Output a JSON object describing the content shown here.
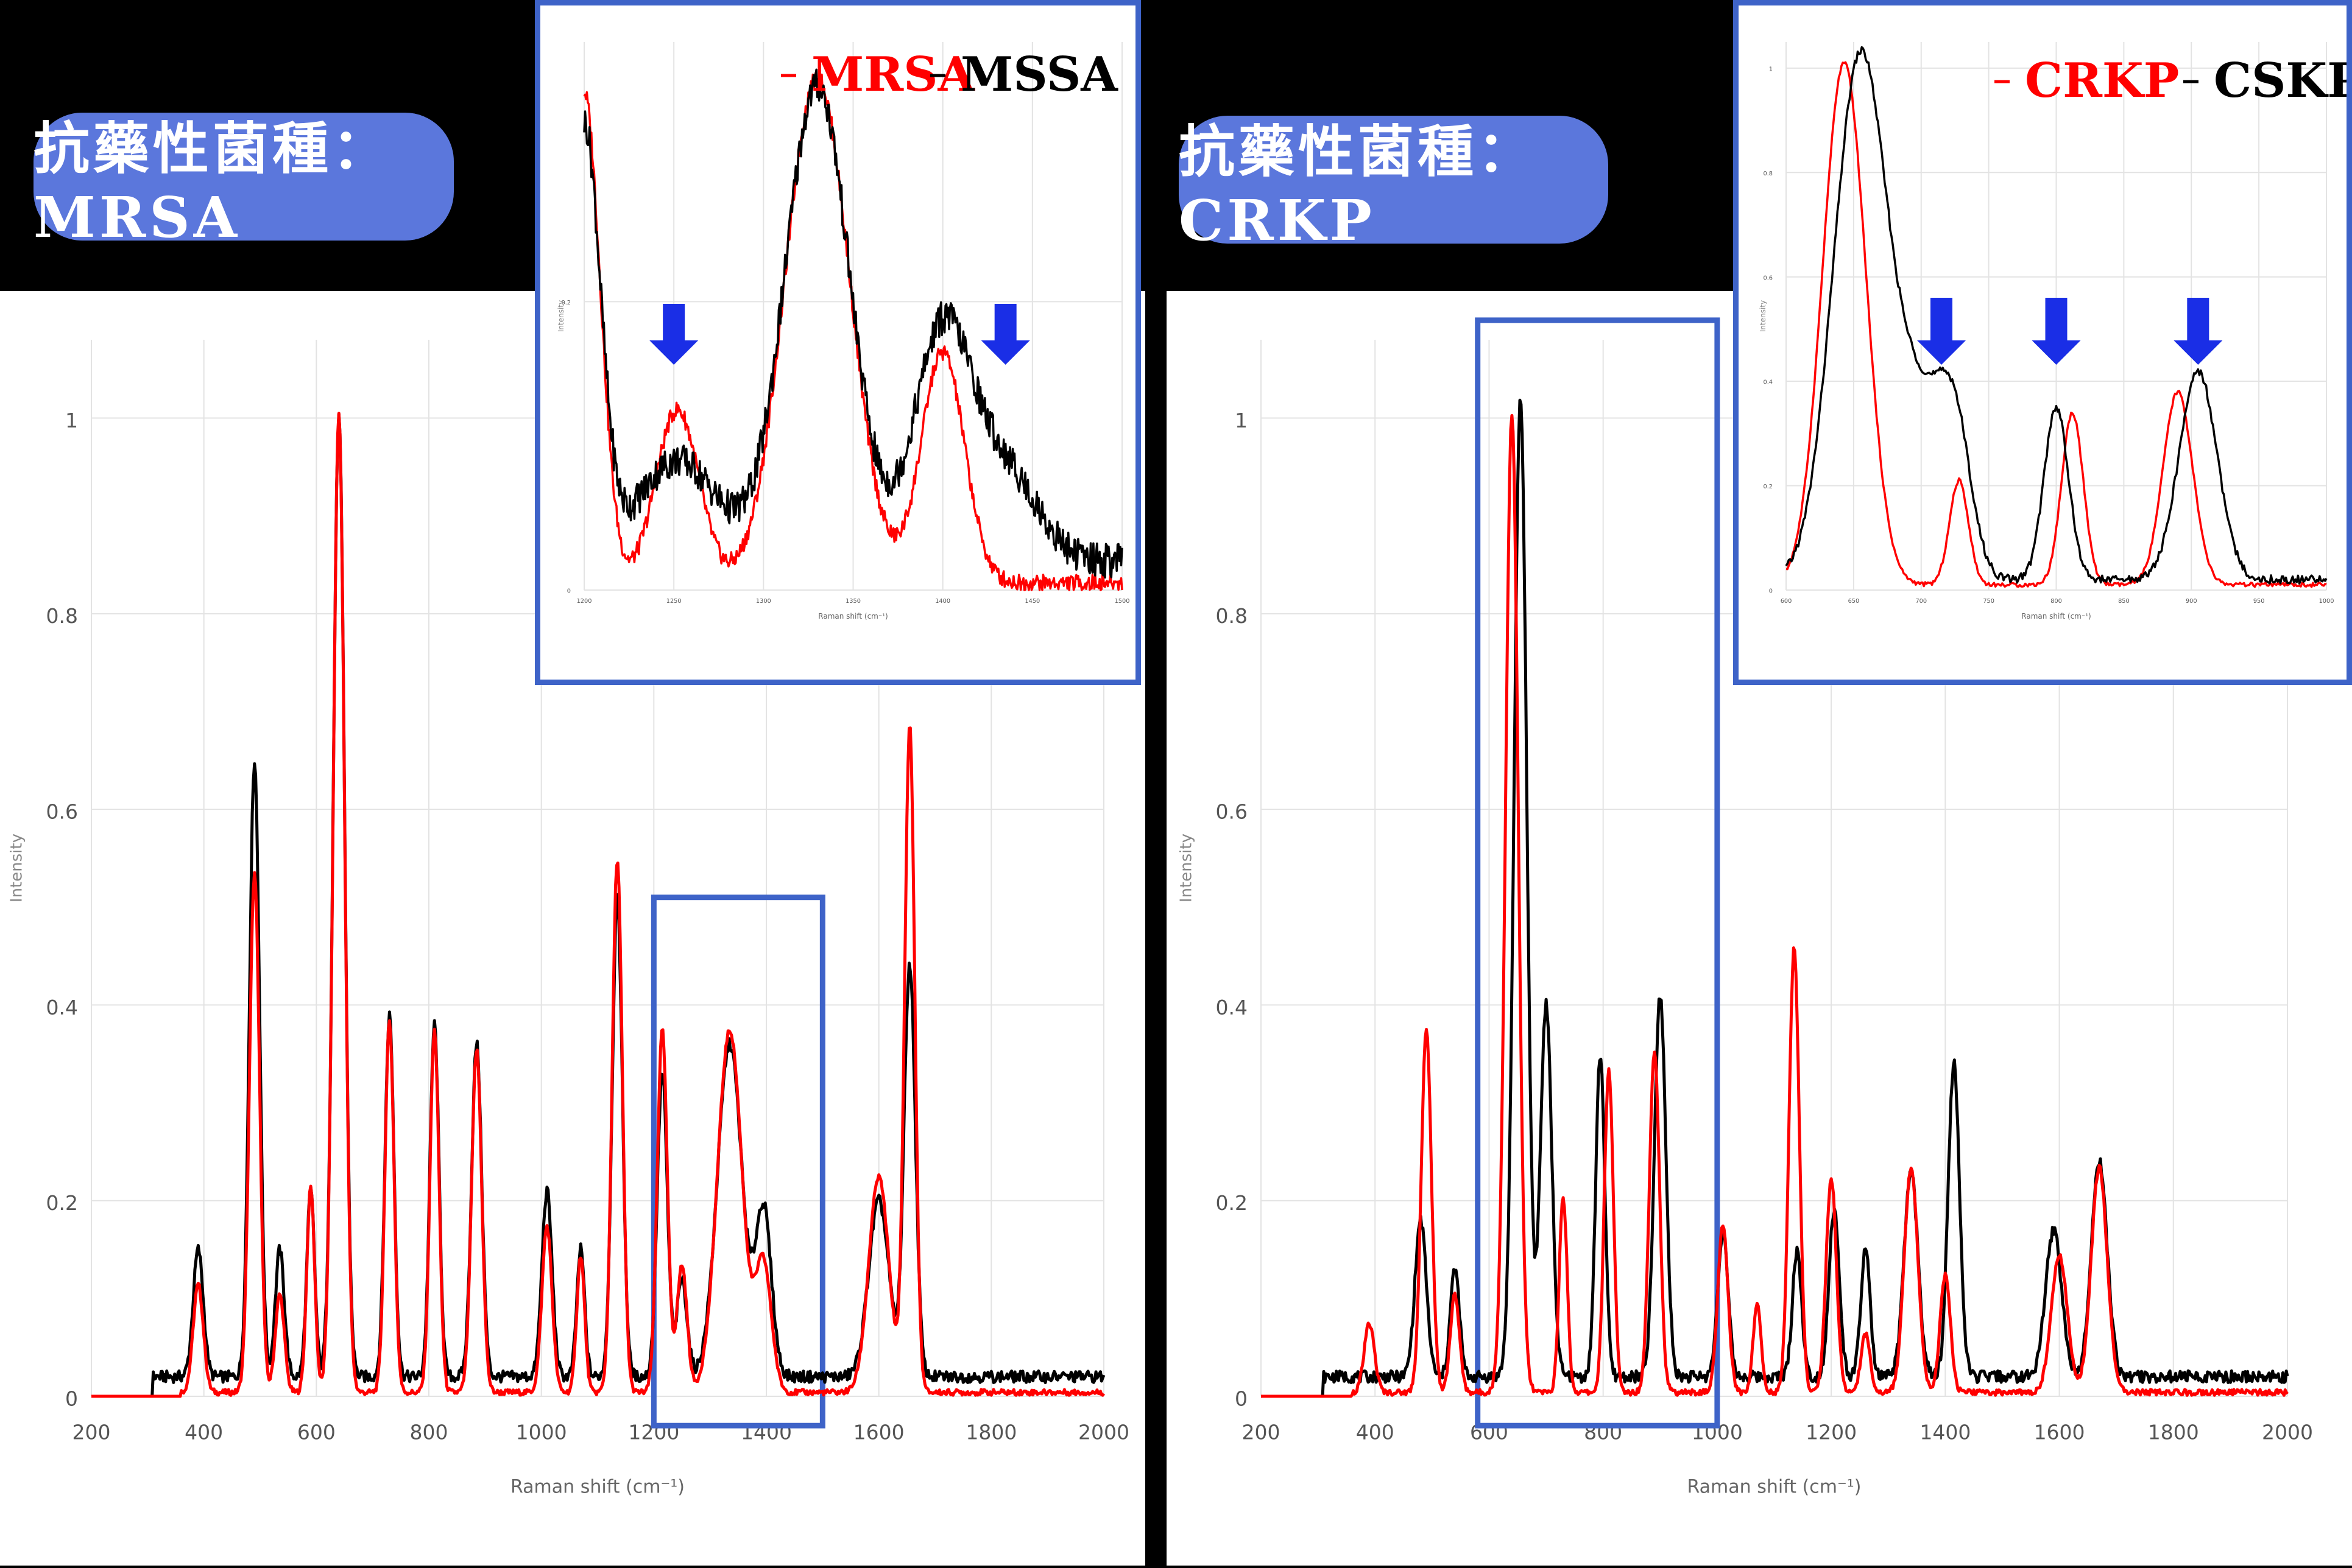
{
  "colors": {
    "resistant": "#ff0000",
    "susceptible": "#000000",
    "highlight": "#3e63c8",
    "arrow": "#1a2ee6",
    "pill": "#5b77dc"
  },
  "left": {
    "label": "抗藥性菌種：MRSA",
    "legend": [
      "MRSA",
      "MSSA"
    ]
  },
  "right": {
    "label": "抗藥性菌種：CRKP",
    "legend": [
      "CRKP",
      "CSKP"
    ]
  },
  "chart_data": [
    {
      "type": "line",
      "xlabel": "Raman shift (cm⁻¹)",
      "ylabel": "Intensity",
      "xlim": [
        200,
        2000
      ],
      "ylim": [
        0,
        1.08
      ],
      "xticks": [
        200,
        400,
        600,
        800,
        1000,
        1200,
        1400,
        1600,
        1800,
        2000
      ],
      "yticks": [
        0,
        0.2,
        0.4,
        0.6,
        0.8,
        1
      ],
      "grid": true,
      "highlight_x_range": [
        1200,
        1500
      ],
      "series": [
        {
          "name": "MRSA",
          "color": "#ff0000",
          "baseline": 0.004,
          "peaks": [
            [
              390,
              0.11,
              9
            ],
            [
              490,
              0.53,
              9
            ],
            [
              535,
              0.1,
              8
            ],
            [
              590,
              0.21,
              7
            ],
            [
              640,
              1.0,
              10
            ],
            [
              730,
              0.38,
              8
            ],
            [
              810,
              0.37,
              8
            ],
            [
              885,
              0.35,
              9
            ],
            [
              1010,
              0.17,
              9
            ],
            [
              1070,
              0.14,
              7
            ],
            [
              1135,
              0.545,
              9
            ],
            [
              1215,
              0.37,
              9
            ],
            [
              1250,
              0.13,
              9
            ],
            [
              1335,
              0.37,
              22
            ],
            [
              1395,
              0.13,
              14
            ],
            [
              1600,
              0.22,
              18
            ],
            [
              1655,
              0.68,
              9
            ]
          ]
        },
        {
          "name": "MSSA",
          "color": "#000000",
          "baseline": 0.02,
          "peaks": [
            [
              390,
              0.13,
              9
            ],
            [
              490,
              0.63,
              9
            ],
            [
              535,
              0.13,
              8
            ],
            [
              590,
              0.19,
              7
            ],
            [
              640,
              0.98,
              10
            ],
            [
              730,
              0.37,
              8
            ],
            [
              810,
              0.36,
              8
            ],
            [
              885,
              0.34,
              9
            ],
            [
              1010,
              0.19,
              9
            ],
            [
              1070,
              0.13,
              7
            ],
            [
              1135,
              0.49,
              9
            ],
            [
              1215,
              0.31,
              9
            ],
            [
              1250,
              0.1,
              9
            ],
            [
              1335,
              0.34,
              22
            ],
            [
              1395,
              0.17,
              14
            ],
            [
              1600,
              0.18,
              18
            ],
            [
              1655,
              0.42,
              10
            ]
          ]
        }
      ]
    },
    {
      "type": "line",
      "xlabel": "Raman shift (cm⁻¹)",
      "ylabel": "Intensity",
      "xlim": [
        1200,
        1500
      ],
      "ylim": [
        0,
        0.38
      ],
      "xticks": [
        1200,
        1250,
        1300,
        1350,
        1400,
        1450,
        1500
      ],
      "grid": true,
      "annotations": [
        "arrow at 1250",
        "arrow at 1435"
      ],
      "series": [
        {
          "name": "MRSA",
          "color": "#ff0000",
          "baseline": 0.005,
          "peaks": [
            [
              1200,
              0.34,
              9
            ],
            [
              1252,
              0.12,
              12
            ],
            [
              1330,
              0.35,
              18
            ],
            [
              1400,
              0.16,
              12
            ]
          ]
        },
        {
          "name": "MSSA",
          "color": "#000000",
          "baseline": 0.02,
          "peaks": [
            [
              1200,
              0.3,
              9
            ],
            [
              1252,
              0.07,
              22
            ],
            [
              1330,
              0.33,
              18
            ],
            [
              1400,
              0.16,
              16
            ],
            [
              1435,
              0.06,
              18
            ]
          ]
        }
      ]
    },
    {
      "type": "line",
      "xlabel": "Raman shift (cm⁻¹)",
      "ylabel": "Intensity",
      "xlim": [
        200,
        2000
      ],
      "ylim": [
        0,
        1.08
      ],
      "xticks": [
        200,
        400,
        600,
        800,
        1000,
        1200,
        1400,
        1600,
        1800,
        2000
      ],
      "yticks": [
        0,
        0.2,
        0.4,
        0.6,
        0.8,
        1
      ],
      "grid": true,
      "highlight_x_range": [
        580,
        1000
      ],
      "series": [
        {
          "name": "CRKP",
          "color": "#ff0000",
          "baseline": 0.004,
          "peaks": [
            [
              390,
              0.07,
              9
            ],
            [
              490,
              0.37,
              9
            ],
            [
              540,
              0.1,
              8
            ],
            [
              640,
              1.0,
              11
            ],
            [
              730,
              0.2,
              7
            ],
            [
              810,
              0.33,
              8
            ],
            [
              890,
              0.35,
              9
            ],
            [
              1010,
              0.17,
              9
            ],
            [
              1070,
              0.09,
              7
            ],
            [
              1135,
              0.455,
              9
            ],
            [
              1200,
              0.22,
              9
            ],
            [
              1260,
              0.06,
              8
            ],
            [
              1340,
              0.23,
              12
            ],
            [
              1400,
              0.12,
              9
            ],
            [
              1600,
              0.14,
              14
            ],
            [
              1670,
              0.23,
              14
            ]
          ]
        },
        {
          "name": "CSKP",
          "color": "#000000",
          "baseline": 0.02,
          "peaks": [
            [
              480,
              0.16,
              10
            ],
            [
              540,
              0.11,
              8
            ],
            [
              655,
              1.0,
              11
            ],
            [
              700,
              0.38,
              10
            ],
            [
              795,
              0.33,
              8
            ],
            [
              900,
              0.39,
              10
            ],
            [
              1010,
              0.15,
              9
            ],
            [
              1140,
              0.13,
              8
            ],
            [
              1205,
              0.17,
              9
            ],
            [
              1260,
              0.13,
              8
            ],
            [
              1340,
              0.21,
              12
            ],
            [
              1415,
              0.32,
              10
            ],
            [
              1590,
              0.15,
              14
            ],
            [
              1670,
              0.22,
              14
            ]
          ]
        }
      ]
    },
    {
      "type": "line",
      "xlabel": "Raman shift (cm⁻¹)",
      "ylabel": "Intensity",
      "xlim": [
        600,
        1000
      ],
      "ylim": [
        0,
        1.05
      ],
      "xticks": [
        600,
        650,
        700,
        750,
        800,
        850,
        900,
        950,
        1000
      ],
      "grid": true,
      "annotations": [
        "arrow at 715",
        "arrow at 800",
        "arrow at 905"
      ],
      "series": [
        {
          "name": "CRKP",
          "color": "#ff0000",
          "baseline": 0.01,
          "peaks": [
            [
              643,
              1.0,
              16
            ],
            [
              728,
              0.2,
              7
            ],
            [
              812,
              0.33,
              8
            ],
            [
              890,
              0.37,
              11
            ]
          ]
        },
        {
          "name": "CSKP",
          "color": "#000000",
          "baseline": 0.02,
          "peaks": [
            [
              655,
              1.0,
              20
            ],
            [
              700,
              0.3,
              18
            ],
            [
              725,
              0.25,
              12
            ],
            [
              800,
              0.33,
              9
            ],
            [
              905,
              0.4,
              14
            ]
          ]
        }
      ]
    }
  ]
}
